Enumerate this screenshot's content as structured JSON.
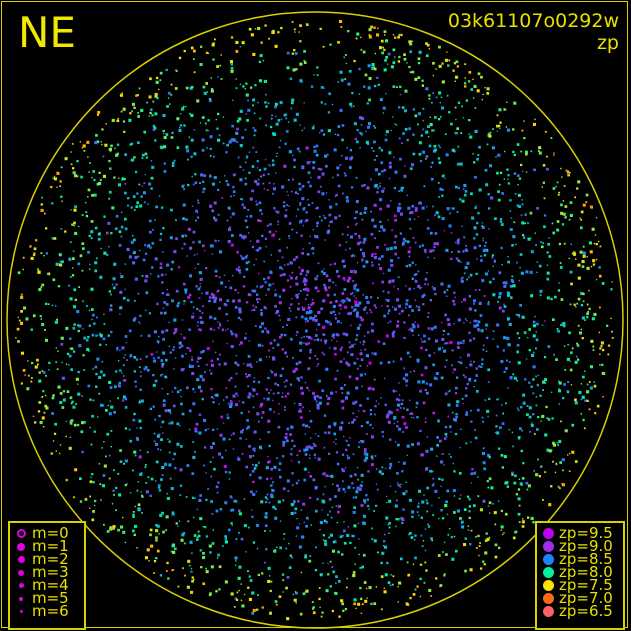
{
  "header": {
    "direction_label": "NE",
    "frame_id": "03k61107o0292w",
    "quantity": "zp"
  },
  "colors": {
    "frame": "#d8d000",
    "text": "#e8e000",
    "background": "#000000"
  },
  "chart_data": {
    "type": "scatter",
    "projection": "all-sky polar (circular horizon)",
    "color_by": "zp",
    "size_by": "m",
    "grid": false,
    "magnitude_legend": {
      "placement": "bottom-left",
      "entries": [
        {
          "label": "m=0",
          "m": 0,
          "style": "open"
        },
        {
          "label": "m=1",
          "m": 1
        },
        {
          "label": "m=2",
          "m": 2
        },
        {
          "label": "m=3",
          "m": 3
        },
        {
          "label": "m=4",
          "m": 4
        },
        {
          "label": "m=5",
          "m": 5
        },
        {
          "label": "m=6",
          "m": 6
        }
      ]
    },
    "zp_legend": {
      "placement": "bottom-right",
      "entries": [
        {
          "label": "zp=9.5",
          "zp": 9.5,
          "color": "#c000f0"
        },
        {
          "label": "zp=9.0",
          "zp": 9.0,
          "color": "#a030e8"
        },
        {
          "label": "zp=8.5",
          "zp": 8.5,
          "color": "#2080ff"
        },
        {
          "label": "zp=8.0",
          "zp": 8.0,
          "color": "#00f0a0"
        },
        {
          "label": "zp=7.5",
          "zp": 7.5,
          "color": "#ffe000"
        },
        {
          "label": "zp=7.0",
          "zp": 7.0,
          "color": "#ff6a10"
        },
        {
          "label": "zp=6.5",
          "zp": 6.5,
          "color": "#ff6060"
        }
      ]
    },
    "zp_trend": "center mostly zp 8.5-9.5 (blue/cyan/violet); rim mostly zp 7.0-8.0 (green/yellow/orange)"
  }
}
